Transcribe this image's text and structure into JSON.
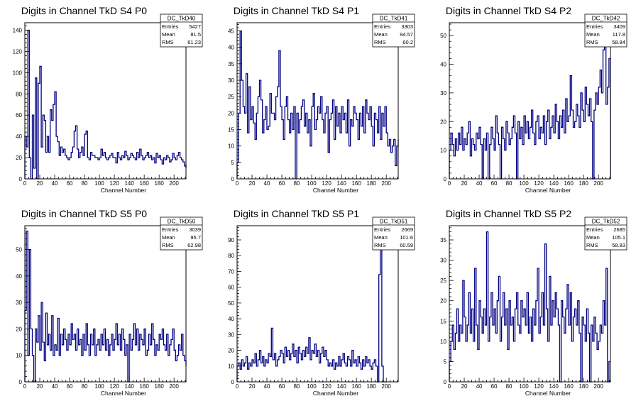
{
  "figure": {
    "background": "#ffffff",
    "line_color": "#000080"
  },
  "chart_data": [
    {
      "type": "histogram",
      "title": "Digits in Channel TkD S4 P0",
      "xlabel": "Channel Number",
      "xlim": [
        0,
        216
      ],
      "ylim": [
        0,
        147
      ],
      "x_ticks": [
        0,
        20,
        40,
        60,
        80,
        100,
        120,
        140,
        160,
        180,
        200
      ],
      "y_ticks": [
        0,
        20,
        40,
        60,
        80,
        100,
        120,
        140
      ],
      "stats": {
        "name": "DC_TkD40",
        "entries": "5427",
        "mean": "81.5",
        "rms": "61.23"
      },
      "bin_width": 2,
      "values": [
        40,
        30,
        140,
        20,
        0,
        60,
        10,
        95,
        0,
        90,
        106,
        30,
        60,
        55,
        25,
        40,
        25,
        65,
        55,
        70,
        82,
        40,
        35,
        22,
        30,
        25,
        28,
        22,
        20,
        18,
        20,
        25,
        30,
        45,
        50,
        28,
        20,
        25,
        30,
        22,
        42,
        45,
        20,
        18,
        25,
        22,
        22,
        20,
        20,
        18,
        20,
        28,
        22,
        25,
        20,
        18,
        20,
        22,
        24,
        20,
        20,
        15,
        25,
        20,
        18,
        22,
        20,
        26,
        22,
        18,
        20,
        24,
        22,
        20,
        18,
        25,
        20,
        28,
        22,
        18,
        20,
        22,
        25,
        20,
        22,
        18,
        20,
        15,
        24,
        20,
        22,
        18,
        14,
        20,
        18,
        22,
        20,
        16,
        18,
        24,
        20,
        18,
        22,
        25,
        20,
        18,
        16,
        12,
        10,
        14
      ]
    },
    {
      "type": "histogram",
      "title": "Digits in Channel TkD S4 P1",
      "xlabel": "Channel Number",
      "xlim": [
        0,
        216
      ],
      "ylim": [
        0,
        47.5
      ],
      "x_ticks": [
        0,
        20,
        40,
        60,
        80,
        100,
        120,
        140,
        160,
        180,
        200
      ],
      "y_ticks": [
        0,
        5,
        10,
        15,
        20,
        25,
        30,
        35,
        40,
        45
      ],
      "stats": {
        "name": "DC_TkD41",
        "entries": "3303",
        "mean": "94.57",
        "rms": "60.2"
      },
      "bin_width": 2,
      "values": [
        5,
        20,
        45,
        30,
        22,
        20,
        32,
        14,
        28,
        18,
        22,
        17,
        12,
        20,
        25,
        30,
        24,
        14,
        18,
        22,
        15,
        16,
        26,
        20,
        20,
        18,
        25,
        28,
        39,
        22,
        18,
        12,
        22,
        25,
        18,
        14,
        20,
        15,
        22,
        0,
        20,
        14,
        18,
        22,
        24,
        16,
        20,
        14,
        18,
        10,
        22,
        26,
        15,
        18,
        22,
        20,
        25,
        18,
        14,
        20,
        22,
        8,
        18,
        20,
        24,
        12,
        22,
        16,
        20,
        14,
        22,
        18,
        20,
        14,
        24,
        10,
        18,
        16,
        22,
        20,
        18,
        12,
        20,
        16,
        22,
        14,
        24,
        20,
        18,
        22,
        16,
        10,
        20,
        18,
        14,
        22,
        12,
        20,
        16,
        22,
        14,
        10,
        12,
        8,
        10,
        12,
        4,
        10,
        12,
        10
      ]
    },
    {
      "type": "histogram",
      "title": "Digits in Channel TkD S4 P2",
      "xlabel": "Channel Number",
      "xlim": [
        0,
        216
      ],
      "ylim": [
        0,
        54.5
      ],
      "x_ticks": [
        0,
        20,
        40,
        60,
        80,
        100,
        120,
        140,
        160,
        180,
        200
      ],
      "y_ticks": [
        0,
        10,
        20,
        30,
        40,
        50
      ],
      "stats": {
        "name": "DC_TkD42",
        "entries": "3409",
        "mean": "117.8",
        "rms": "58.84"
      },
      "bin_width": 2,
      "values": [
        10,
        16,
        12,
        8,
        14,
        10,
        16,
        12,
        18,
        10,
        14,
        12,
        16,
        20,
        8,
        14,
        12,
        10,
        16,
        14,
        18,
        12,
        0,
        14,
        10,
        16,
        0,
        12,
        18,
        14,
        10,
        22,
        16,
        12,
        0,
        18,
        14,
        10,
        20,
        16,
        12,
        14,
        18,
        22,
        16,
        0,
        20,
        14,
        18,
        12,
        22,
        16,
        20,
        14,
        18,
        24,
        16,
        12,
        20,
        22,
        14,
        18,
        16,
        22,
        12,
        20,
        24,
        14,
        18,
        22,
        16,
        26,
        20,
        14,
        22,
        18,
        24,
        16,
        28,
        20,
        22,
        36,
        24,
        18,
        20,
        26,
        22,
        18,
        30,
        24,
        20,
        32,
        26,
        22,
        28,
        20,
        0,
        24,
        30,
        26,
        32,
        38,
        30,
        45,
        50,
        26,
        32,
        42,
        22,
        30,
        10,
        6,
        4,
        0
      ]
    },
    {
      "type": "histogram",
      "title": "Digits in Channel TkD S5 P0",
      "xlabel": "Channel Number",
      "xlim": [
        0,
        216
      ],
      "ylim": [
        0,
        59
      ],
      "x_ticks": [
        0,
        20,
        40,
        60,
        80,
        100,
        120,
        140,
        160,
        180,
        200
      ],
      "y_ticks": [
        0,
        10,
        20,
        30,
        40,
        50
      ],
      "stats": {
        "name": "DC_TkD50",
        "entries": "3039",
        "mean": "95.7",
        "rms": "62.98"
      },
      "bin_width": 2,
      "values": [
        27,
        57,
        10,
        50,
        20,
        10,
        0,
        20,
        15,
        25,
        12,
        30,
        15,
        8,
        26,
        14,
        18,
        12,
        25,
        10,
        14,
        12,
        24,
        10,
        18,
        14,
        20,
        16,
        12,
        18,
        14,
        22,
        16,
        18,
        12,
        20,
        14,
        16,
        10,
        18,
        12,
        22,
        14,
        10,
        18,
        14,
        20,
        10,
        14,
        16,
        12,
        18,
        14,
        20,
        12,
        16,
        10,
        14,
        18,
        12,
        16,
        22,
        14,
        18,
        12,
        20,
        16,
        10,
        14,
        0,
        18,
        12,
        16,
        22,
        14,
        20,
        12,
        18,
        16,
        14,
        20,
        10,
        12,
        18,
        14,
        22,
        16,
        10,
        14,
        12,
        18,
        16,
        20,
        14,
        12,
        18,
        10,
        14,
        16,
        20,
        12,
        8,
        10,
        14,
        12,
        18,
        10,
        8,
        6,
        8
      ]
    },
    {
      "type": "histogram",
      "title": "Digits in Channel TkD S5 P1",
      "xlabel": "Channel Number",
      "xlim": [
        0,
        216
      ],
      "ylim": [
        0,
        99
      ],
      "x_ticks": [
        0,
        20,
        40,
        60,
        80,
        100,
        120,
        140,
        160,
        180,
        200
      ],
      "y_ticks": [
        0,
        10,
        20,
        30,
        40,
        50,
        60,
        70,
        80,
        90
      ],
      "stats": {
        "name": "DC_TkD51",
        "entries": "2669",
        "mean": "101.6",
        "rms": "60.59"
      },
      "bin_width": 2,
      "values": [
        10,
        12,
        8,
        14,
        10,
        12,
        16,
        8,
        12,
        10,
        14,
        12,
        18,
        10,
        14,
        20,
        12,
        16,
        10,
        14,
        12,
        18,
        16,
        34,
        14,
        18,
        10,
        14,
        16,
        20,
        18,
        12,
        22,
        16,
        20,
        14,
        18,
        24,
        16,
        20,
        12,
        22,
        18,
        14,
        20,
        16,
        22,
        18,
        28,
        14,
        20,
        18,
        24,
        16,
        20,
        12,
        18,
        22,
        16,
        20,
        14,
        10,
        12,
        10,
        14,
        8,
        12,
        10,
        16,
        10,
        14,
        18,
        12,
        10,
        16,
        14,
        10,
        20,
        12,
        14,
        10,
        16,
        12,
        8,
        14,
        10,
        16,
        12,
        14,
        10,
        8,
        12,
        14,
        10,
        0,
        68,
        85,
        10,
        0,
        0
      ]
    },
    {
      "type": "histogram",
      "title": "Digits in Channel TkD S5 P2",
      "xlabel": "Channel Number",
      "xlim": [
        0,
        216
      ],
      "ylim": [
        0,
        38.5
      ],
      "x_ticks": [
        0,
        20,
        40,
        60,
        80,
        100,
        120,
        140,
        160,
        180,
        200
      ],
      "y_ticks": [
        0,
        5,
        10,
        15,
        20,
        25,
        30,
        35
      ],
      "stats": {
        "name": "DC_TkD52",
        "entries": "2685",
        "mean": "105.1",
        "rms": "58.83"
      },
      "bin_width": 2,
      "values": [
        5,
        10,
        14,
        8,
        12,
        18,
        10,
        14,
        12,
        25,
        16,
        10,
        14,
        22,
        12,
        18,
        10,
        28,
        14,
        8,
        20,
        16,
        12,
        18,
        14,
        37,
        10,
        16,
        22,
        14,
        18,
        12,
        20,
        26,
        10,
        16,
        22,
        14,
        18,
        8,
        20,
        14,
        16,
        10,
        18,
        22,
        14,
        12,
        20,
        16,
        18,
        14,
        22,
        12,
        16,
        10,
        18,
        14,
        20,
        28,
        12,
        16,
        22,
        14,
        34,
        18,
        10,
        26,
        14,
        20,
        16,
        22,
        18,
        14,
        0,
        20,
        16,
        12,
        18,
        24,
        14,
        22,
        10,
        16,
        18,
        14,
        20,
        12,
        0,
        16,
        14,
        10,
        18,
        12,
        0,
        14,
        10,
        16,
        12,
        8,
        10,
        14,
        12,
        20,
        14,
        28,
        0,
        5
      ]
    }
  ]
}
